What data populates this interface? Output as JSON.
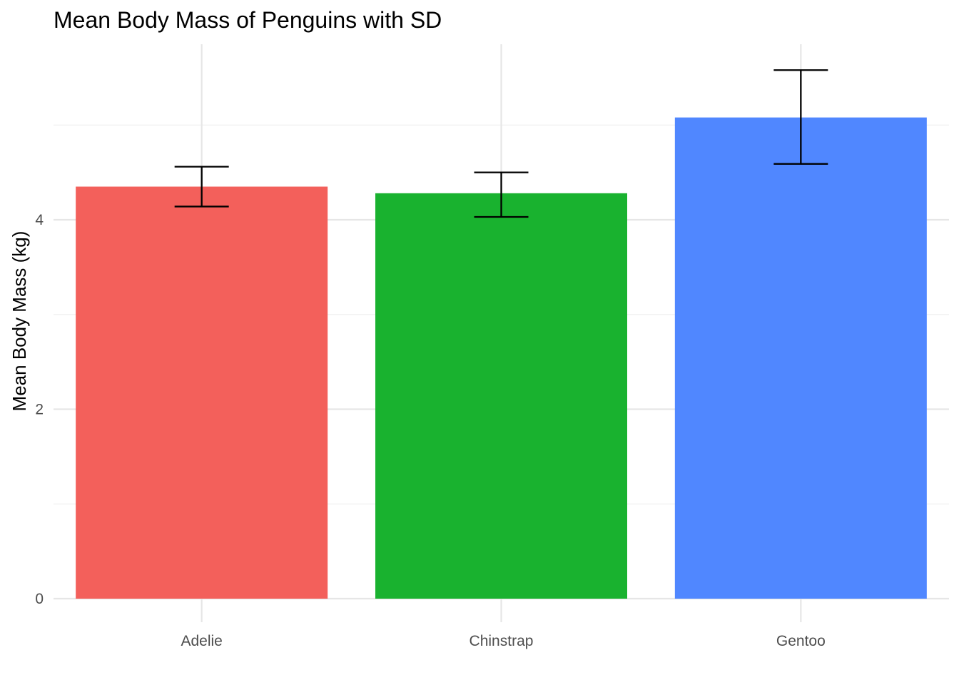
{
  "chart_data": {
    "type": "bar",
    "title": "Mean Body Mass of Penguins with SD",
    "xlabel": "",
    "ylabel": "Mean Body Mass (kg)",
    "categories": [
      "Adelie",
      "Chinstrap",
      "Gentoo"
    ],
    "values": [
      4.35,
      4.28,
      5.08
    ],
    "error_bars": [
      {
        "low": 4.14,
        "high": 4.56
      },
      {
        "low": 4.03,
        "high": 4.5
      },
      {
        "low": 4.59,
        "high": 5.58
      }
    ],
    "colors": [
      "#F8766D",
      "#00BA38",
      "#619CFF"
    ],
    "bar_colors_rendered": [
      "#F3605B",
      "#19B22F",
      "#5087FF"
    ],
    "ylim": [
      0,
      5.85
    ],
    "yticks": [
      0,
      2,
      4
    ],
    "grid": true,
    "legend": "none"
  }
}
